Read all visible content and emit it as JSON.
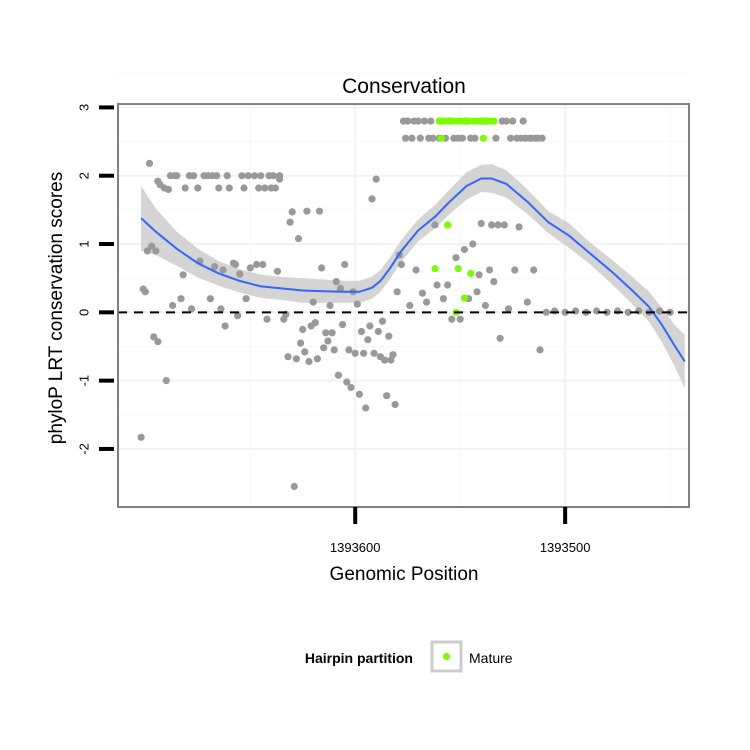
{
  "chart_data": {
    "type": "scatter",
    "title": "Conservation",
    "xlabel": "Genomic Position",
    "ylabel": "phyloP LRT conservation scores",
    "x_reversed": true,
    "xlim": [
      1393713,
      1393441
    ],
    "ylim": [
      -2.85,
      3.05
    ],
    "x_ticks": [
      1393600,
      1393500
    ],
    "x_tick_labels": [
      "1393600",
      "1393500"
    ],
    "y_ticks": [
      -2,
      -1,
      0,
      1,
      2,
      3
    ],
    "y_tick_labels": [
      "-2",
      "-1",
      "0",
      "1",
      "2",
      "3"
    ],
    "grid": true,
    "reference_line": {
      "y": 0,
      "style": "dashed"
    },
    "legend": {
      "title": "Hairpin partition",
      "position": "bottom",
      "entries": [
        {
          "label": "Mature",
          "color": "#7CFC00"
        }
      ]
    },
    "colors": {
      "other": "#999999",
      "mature": "#7CFC00",
      "smooth": "#3366FF",
      "band": "#cccccc",
      "panel_border": "#808080"
    },
    "series": [
      {
        "name": "Mature",
        "points": [
          [
            1393560,
            2.8
          ],
          [
            1393558,
            2.8
          ],
          [
            1393556,
            2.8
          ],
          [
            1393554,
            2.8
          ],
          [
            1393552,
            2.8
          ],
          [
            1393550,
            2.8
          ],
          [
            1393548,
            2.8
          ],
          [
            1393546,
            2.8
          ],
          [
            1393544,
            2.8
          ],
          [
            1393542,
            2.8
          ],
          [
            1393540,
            2.8
          ],
          [
            1393538,
            2.8
          ],
          [
            1393536,
            2.8
          ],
          [
            1393534,
            2.8
          ],
          [
            1393559,
            2.55
          ],
          [
            1393539,
            2.55
          ],
          [
            1393556,
            1.28
          ],
          [
            1393562,
            0.64
          ],
          [
            1393551,
            0.64
          ],
          [
            1393545,
            0.57
          ],
          [
            1393548,
            0.21
          ],
          [
            1393552,
            0.0
          ]
        ]
      },
      {
        "name": "Other",
        "points": [
          [
            1393702,
            -1.83
          ],
          [
            1393701,
            0.34
          ],
          [
            1393700,
            0.3
          ],
          [
            1393699,
            0.9
          ],
          [
            1393698,
            2.18
          ],
          [
            1393697,
            0.97
          ],
          [
            1393696,
            -0.36
          ],
          [
            1393695,
            0.9
          ],
          [
            1393694,
            1.92
          ],
          [
            1393694,
            -0.43
          ],
          [
            1393693,
            1.87
          ],
          [
            1393691,
            1.82
          ],
          [
            1393690,
            -1.0
          ],
          [
            1393689,
            1.8
          ],
          [
            1393688,
            2.0
          ],
          [
            1393687,
            0.1
          ],
          [
            1393686,
            2.0
          ],
          [
            1393685,
            2.0
          ],
          [
            1393683,
            0.2
          ],
          [
            1393682,
            0.55
          ],
          [
            1393681,
            1.82
          ],
          [
            1393679,
            2.0
          ],
          [
            1393678,
            0.05
          ],
          [
            1393677,
            2.0
          ],
          [
            1393675,
            1.82
          ],
          [
            1393674,
            0.75
          ],
          [
            1393672,
            2.0
          ],
          [
            1393670,
            2.0
          ],
          [
            1393669,
            0.2
          ],
          [
            1393668,
            2.0
          ],
          [
            1393667,
            0.67
          ],
          [
            1393666,
            2.0
          ],
          [
            1393665,
            1.82
          ],
          [
            1393664,
            0.05
          ],
          [
            1393663,
            0.62
          ],
          [
            1393662,
            -0.2
          ],
          [
            1393661,
            2.0
          ],
          [
            1393660,
            1.82
          ],
          [
            1393658,
            0.72
          ],
          [
            1393657,
            0.7
          ],
          [
            1393656,
            -0.05
          ],
          [
            1393655,
            0.56
          ],
          [
            1393654,
            2.0
          ],
          [
            1393653,
            1.82
          ],
          [
            1393652,
            0.2
          ],
          [
            1393651,
            2.0
          ],
          [
            1393650,
            0.65
          ],
          [
            1393648,
            2.0
          ],
          [
            1393647,
            0.7
          ],
          [
            1393646,
            1.82
          ],
          [
            1393645,
            2.0
          ],
          [
            1393644,
            0.7
          ],
          [
            1393643,
            1.82
          ],
          [
            1393642,
            -0.1
          ],
          [
            1393641,
            2.0
          ],
          [
            1393640,
            1.82
          ],
          [
            1393639,
            2.0
          ],
          [
            1393638,
            1.82
          ],
          [
            1393637,
            0.6
          ],
          [
            1393636,
            2.0
          ],
          [
            1393636,
            1.95
          ],
          [
            1393634,
            -0.1
          ],
          [
            1393633,
            -0.03
          ],
          [
            1393632,
            -0.65
          ],
          [
            1393631,
            1.32
          ],
          [
            1393630,
            1.47
          ],
          [
            1393629,
            -2.55
          ],
          [
            1393628,
            -0.68
          ],
          [
            1393627,
            1.08
          ],
          [
            1393626,
            -0.45
          ],
          [
            1393625,
            -0.25
          ],
          [
            1393624,
            -0.58
          ],
          [
            1393623,
            1.48
          ],
          [
            1393622,
            -0.72
          ],
          [
            1393621,
            -0.2
          ],
          [
            1393620,
            0.15
          ],
          [
            1393619,
            -0.15
          ],
          [
            1393618,
            -0.68
          ],
          [
            1393617,
            1.48
          ],
          [
            1393616,
            0.65
          ],
          [
            1393615,
            -0.52
          ],
          [
            1393614,
            -0.3
          ],
          [
            1393613,
            -0.42
          ],
          [
            1393612,
            0.1
          ],
          [
            1393611,
            -0.3
          ],
          [
            1393610,
            -0.55
          ],
          [
            1393609,
            0.45
          ],
          [
            1393608,
            -0.92
          ],
          [
            1393607,
            0.35
          ],
          [
            1393606,
            -0.18
          ],
          [
            1393605,
            0.7
          ],
          [
            1393604,
            -1.02
          ],
          [
            1393603,
            -0.55
          ],
          [
            1393602,
            -1.1
          ],
          [
            1393601,
            0.3
          ],
          [
            1393600,
            -0.6
          ],
          [
            1393599,
            0.12
          ],
          [
            1393598,
            -1.2
          ],
          [
            1393597,
            -0.28
          ],
          [
            1393596,
            -0.6
          ],
          [
            1393595,
            -1.4
          ],
          [
            1393594,
            -0.4
          ],
          [
            1393593,
            -0.2
          ],
          [
            1393592,
            1.66
          ],
          [
            1393591,
            -0.6
          ],
          [
            1393590,
            1.95
          ],
          [
            1393589,
            -0.28
          ],
          [
            1393588,
            -0.65
          ],
          [
            1393587,
            -0.13
          ],
          [
            1393586,
            -0.7
          ],
          [
            1393585,
            -1.22
          ],
          [
            1393584,
            -0.35
          ],
          [
            1393583,
            -0.7
          ],
          [
            1393582,
            -0.62
          ],
          [
            1393581,
            -1.35
          ],
          [
            1393580,
            0.3
          ],
          [
            1393579,
            0.84
          ],
          [
            1393578,
            0.7
          ],
          [
            1393577,
            2.8
          ],
          [
            1393576,
            2.55
          ],
          [
            1393575,
            2.8
          ],
          [
            1393574,
            0.1
          ],
          [
            1393573,
            2.55
          ],
          [
            1393572,
            2.8
          ],
          [
            1393571,
            0.62
          ],
          [
            1393570,
            2.8
          ],
          [
            1393569,
            2.55
          ],
          [
            1393568,
            0.28
          ],
          [
            1393567,
            2.8
          ],
          [
            1393566,
            0.15
          ],
          [
            1393565,
            2.55
          ],
          [
            1393564,
            2.8
          ],
          [
            1393563,
            2.55
          ],
          [
            1393562,
            1.28
          ],
          [
            1393561,
            0.4
          ],
          [
            1393560,
            2.55
          ],
          [
            1393559,
            2.8
          ],
          [
            1393558,
            0.2
          ],
          [
            1393557,
            2.55
          ],
          [
            1393556,
            0.4
          ],
          [
            1393555,
            2.8
          ],
          [
            1393554,
            -0.1
          ],
          [
            1393553,
            2.55
          ],
          [
            1393552,
            0.8
          ],
          [
            1393551,
            2.55
          ],
          [
            1393550,
            -0.1
          ],
          [
            1393549,
            2.55
          ],
          [
            1393548,
            0.92
          ],
          [
            1393547,
            2.8
          ],
          [
            1393546,
            0.2
          ],
          [
            1393545,
            2.55
          ],
          [
            1393544,
            1.0
          ],
          [
            1393543,
            2.55
          ],
          [
            1393542,
            0.3
          ],
          [
            1393541,
            0.55
          ],
          [
            1393540,
            1.3
          ],
          [
            1393539,
            2.8
          ],
          [
            1393538,
            0.1
          ],
          [
            1393537,
            2.8
          ],
          [
            1393536,
            0.62
          ],
          [
            1393535,
            1.28
          ],
          [
            1393534,
            0.45
          ],
          [
            1393533,
            2.55
          ],
          [
            1393532,
            1.28
          ],
          [
            1393531,
            -0.38
          ],
          [
            1393530,
            2.8
          ],
          [
            1393529,
            1.28
          ],
          [
            1393528,
            2.8
          ],
          [
            1393527,
            0.05
          ],
          [
            1393526,
            2.55
          ],
          [
            1393525,
            2.8
          ],
          [
            1393524,
            0.62
          ],
          [
            1393523,
            2.55
          ],
          [
            1393522,
            1.25
          ],
          [
            1393521,
            2.55
          ],
          [
            1393520,
            2.8
          ],
          [
            1393519,
            2.55
          ],
          [
            1393518,
            0.15
          ],
          [
            1393517,
            2.55
          ],
          [
            1393516,
            2.55
          ],
          [
            1393515,
            0.62
          ],
          [
            1393514,
            2.55
          ],
          [
            1393513,
            2.55
          ],
          [
            1393512,
            -0.55
          ],
          [
            1393511,
            2.55
          ],
          [
            1393509,
            0.0
          ],
          [
            1393505,
            0.02
          ],
          [
            1393500,
            0.0
          ],
          [
            1393495,
            0.02
          ],
          [
            1393490,
            0.0
          ],
          [
            1393485,
            0.02
          ],
          [
            1393480,
            0.0
          ],
          [
            1393475,
            0.02
          ],
          [
            1393470,
            0.0
          ],
          [
            1393465,
            0.02
          ],
          [
            1393460,
            0.0
          ],
          [
            1393455,
            0.02
          ],
          [
            1393450,
            0.0
          ]
        ]
      },
      {
        "name": "loess",
        "type": "line",
        "points": [
          [
            1393702,
            1.38
          ],
          [
            1393695,
            1.18
          ],
          [
            1393685,
            0.93
          ],
          [
            1393675,
            0.72
          ],
          [
            1393665,
            0.57
          ],
          [
            1393655,
            0.46
          ],
          [
            1393645,
            0.38
          ],
          [
            1393635,
            0.35
          ],
          [
            1393625,
            0.32
          ],
          [
            1393615,
            0.31
          ],
          [
            1393605,
            0.3
          ],
          [
            1393598,
            0.3
          ],
          [
            1393592,
            0.36
          ],
          [
            1393588,
            0.46
          ],
          [
            1393584,
            0.62
          ],
          [
            1393578,
            0.9
          ],
          [
            1393570,
            1.2
          ],
          [
            1393562,
            1.4
          ],
          [
            1393555,
            1.62
          ],
          [
            1393547,
            1.85
          ],
          [
            1393540,
            1.96
          ],
          [
            1393535,
            1.96
          ],
          [
            1393528,
            1.88
          ],
          [
            1393518,
            1.62
          ],
          [
            1393508,
            1.32
          ],
          [
            1393498,
            1.12
          ],
          [
            1393488,
            0.86
          ],
          [
            1393478,
            0.6
          ],
          [
            1393468,
            0.32
          ],
          [
            1393460,
            0.08
          ],
          [
            1393454,
            -0.18
          ],
          [
            1393448,
            -0.48
          ],
          [
            1393443,
            -0.72
          ]
        ],
        "ci_band": [
          [
            1393702,
            1.85,
            0.9
          ],
          [
            1393695,
            1.52,
            0.84
          ],
          [
            1393685,
            1.18,
            0.68
          ],
          [
            1393675,
            0.93,
            0.51
          ],
          [
            1393665,
            0.75,
            0.39
          ],
          [
            1393655,
            0.63,
            0.29
          ],
          [
            1393645,
            0.55,
            0.21
          ],
          [
            1393635,
            0.52,
            0.18
          ],
          [
            1393625,
            0.5,
            0.14
          ],
          [
            1393615,
            0.48,
            0.14
          ],
          [
            1393605,
            0.46,
            0.14
          ],
          [
            1393598,
            0.46,
            0.14
          ],
          [
            1393592,
            0.52,
            0.2
          ],
          [
            1393588,
            0.62,
            0.3
          ],
          [
            1393584,
            0.78,
            0.46
          ],
          [
            1393578,
            1.06,
            0.74
          ],
          [
            1393570,
            1.36,
            1.04
          ],
          [
            1393562,
            1.57,
            1.23
          ],
          [
            1393555,
            1.8,
            1.44
          ],
          [
            1393547,
            2.05,
            1.65
          ],
          [
            1393540,
            2.16,
            1.76
          ],
          [
            1393535,
            2.17,
            1.75
          ],
          [
            1393528,
            2.08,
            1.68
          ],
          [
            1393518,
            1.8,
            1.44
          ],
          [
            1393508,
            1.48,
            1.16
          ],
          [
            1393498,
            1.3,
            0.94
          ],
          [
            1393488,
            1.02,
            0.7
          ],
          [
            1393478,
            0.78,
            0.42
          ],
          [
            1393468,
            0.52,
            0.12
          ],
          [
            1393460,
            0.3,
            -0.14
          ],
          [
            1393454,
            0.07,
            -0.43
          ],
          [
            1393448,
            -0.18,
            -0.78
          ],
          [
            1393443,
            -0.33,
            -1.11
          ]
        ]
      }
    ]
  }
}
